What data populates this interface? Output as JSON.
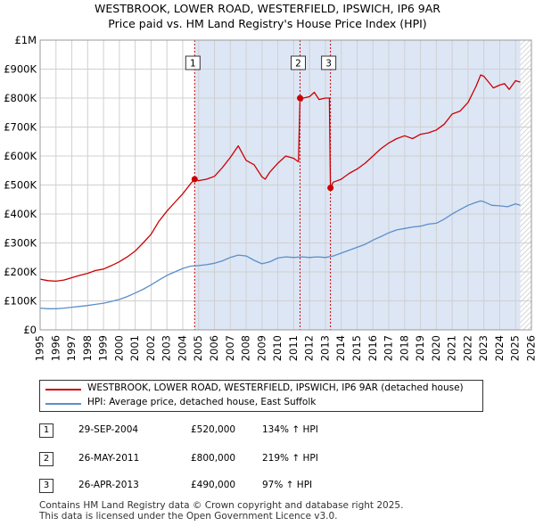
{
  "header": {
    "title_line1": "WESTBROOK, LOWER ROAD, WESTERFIELD, IPSWICH, IP6 9AR",
    "title_line2": "Price paid vs. HM Land Registry's House Price Index (HPI)"
  },
  "colors": {
    "price_line": "#cc0000",
    "hpi_line": "#5b8fc9",
    "shade": "#dde6f5",
    "grid": "#d0d0d0",
    "marker_line": "#cc0000"
  },
  "chart_data": {
    "type": "line",
    "title": "Price paid vs. HM Land Registry's House Price Index (HPI)",
    "xlabel": "",
    "ylabel": "",
    "xlim": [
      1995,
      2026
    ],
    "ylim": [
      0,
      1000000
    ],
    "y_ticks": [
      0,
      100000,
      200000,
      300000,
      400000,
      500000,
      600000,
      700000,
      800000,
      900000,
      1000000
    ],
    "y_tick_labels": [
      "£0",
      "£100K",
      "£200K",
      "£300K",
      "£400K",
      "£500K",
      "£600K",
      "£700K",
      "£800K",
      "£900K",
      "£1M"
    ],
    "x_ticks": [
      1995,
      1996,
      1997,
      1998,
      1999,
      2000,
      2001,
      2002,
      2003,
      2004,
      2005,
      2006,
      2007,
      2008,
      2009,
      2010,
      2011,
      2012,
      2013,
      2014,
      2015,
      2016,
      2017,
      2018,
      2019,
      2020,
      2021,
      2022,
      2023,
      2024,
      2025,
      2026
    ],
    "x_tick_labels": [
      "1995",
      "1996",
      "1997",
      "1998",
      "1999",
      "2000",
      "2001",
      "2002",
      "2003",
      "2004",
      "2005",
      "2006",
      "2007",
      "2008",
      "2009",
      "2010",
      "2011",
      "2012",
      "2013",
      "2014",
      "2015",
      "2016",
      "2017",
      "2018",
      "2019",
      "2020",
      "2021",
      "2022",
      "2023",
      "2024",
      "2025",
      "2026"
    ],
    "grid": true,
    "shaded_period": [
      2004.75,
      2025.3
    ],
    "hatched_after": 2025.3,
    "series": [
      {
        "name": "WESTBROOK, LOWER ROAD, WESTERFIELD, IPSWICH, IP6 9AR (detached house)",
        "x": [
          1995.0,
          1995.5,
          1996.0,
          1996.5,
          1997.0,
          1997.5,
          1998.0,
          1998.5,
          1999.0,
          1999.5,
          2000.0,
          2000.5,
          2001.0,
          2001.5,
          2002.0,
          2002.5,
          2003.0,
          2003.5,
          2004.0,
          2004.5,
          2004.75,
          2005.0,
          2005.5,
          2006.0,
          2006.5,
          2007.0,
          2007.5,
          2007.8,
          2008.0,
          2008.5,
          2009.0,
          2009.2,
          2009.5,
          2010.0,
          2010.5,
          2011.0,
          2011.3,
          2011.4,
          2011.5,
          2011.6,
          2012.0,
          2012.3,
          2012.6,
          2013.0,
          2013.25,
          2013.32,
          2013.5,
          2014.0,
          2014.5,
          2015.0,
          2015.5,
          2016.0,
          2016.5,
          2017.0,
          2017.5,
          2018.0,
          2018.5,
          2019.0,
          2019.5,
          2020.0,
          2020.5,
          2021.0,
          2021.5,
          2022.0,
          2022.5,
          2022.8,
          2023.0,
          2023.3,
          2023.6,
          2024.0,
          2024.3,
          2024.6,
          2025.0,
          2025.3
        ],
        "values": [
          175000,
          170000,
          168000,
          172000,
          180000,
          188000,
          195000,
          205000,
          210000,
          222000,
          235000,
          252000,
          272000,
          300000,
          330000,
          375000,
          410000,
          440000,
          470000,
          505000,
          520000,
          515000,
          520000,
          530000,
          560000,
          595000,
          635000,
          605000,
          585000,
          570000,
          528000,
          520000,
          545000,
          575000,
          600000,
          592000,
          580000,
          800000,
          790000,
          800000,
          805000,
          820000,
          795000,
          800000,
          800000,
          490000,
          510000,
          520000,
          540000,
          555000,
          575000,
          600000,
          625000,
          645000,
          660000,
          670000,
          660000,
          675000,
          680000,
          690000,
          710000,
          745000,
          755000,
          785000,
          840000,
          880000,
          875000,
          855000,
          835000,
          845000,
          850000,
          830000,
          860000,
          855000
        ],
        "color": "#cc0000"
      },
      {
        "name": "HPI: Average price, detached house, East Suffolk",
        "x": [
          1995.0,
          1995.5,
          1996.0,
          1996.5,
          1997.0,
          1997.5,
          1998.0,
          1998.5,
          1999.0,
          1999.5,
          2000.0,
          2000.5,
          2001.0,
          2001.5,
          2002.0,
          2002.5,
          2003.0,
          2003.5,
          2004.0,
          2004.5,
          2005.0,
          2005.5,
          2006.0,
          2006.5,
          2007.0,
          2007.5,
          2008.0,
          2008.5,
          2009.0,
          2009.5,
          2010.0,
          2010.5,
          2011.0,
          2011.5,
          2012.0,
          2012.5,
          2013.0,
          2013.5,
          2014.0,
          2014.5,
          2015.0,
          2015.5,
          2016.0,
          2016.5,
          2017.0,
          2017.5,
          2018.0,
          2018.5,
          2019.0,
          2019.5,
          2020.0,
          2020.5,
          2021.0,
          2021.5,
          2022.0,
          2022.5,
          2022.8,
          2023.0,
          2023.5,
          2024.0,
          2024.5,
          2025.0,
          2025.3
        ],
        "values": [
          75000,
          73000,
          73000,
          75000,
          78000,
          81000,
          84000,
          88000,
          92000,
          98000,
          105000,
          115000,
          127000,
          140000,
          155000,
          172000,
          188000,
          200000,
          212000,
          220000,
          222000,
          225000,
          230000,
          238000,
          250000,
          258000,
          255000,
          240000,
          228000,
          235000,
          248000,
          252000,
          250000,
          252000,
          250000,
          252000,
          250000,
          255000,
          265000,
          275000,
          285000,
          295000,
          310000,
          322000,
          335000,
          345000,
          350000,
          355000,
          358000,
          365000,
          368000,
          382000,
          400000,
          415000,
          430000,
          440000,
          445000,
          442000,
          430000,
          428000,
          425000,
          435000,
          430000
        ],
        "color": "#5b8fc9"
      }
    ],
    "sales": [
      {
        "num": "1",
        "x": 2004.75,
        "y": 520000
      },
      {
        "num": "2",
        "x": 2011.4,
        "y": 800000
      },
      {
        "num": "3",
        "x": 2013.32,
        "y": 490000
      }
    ]
  },
  "legend": {
    "items": [
      {
        "label": "WESTBROOK, LOWER ROAD, WESTERFIELD, IPSWICH, IP6 9AR (detached house)",
        "color": "#cc0000"
      },
      {
        "label": "HPI: Average price, detached house, East Suffolk",
        "color": "#5b8fc9"
      }
    ]
  },
  "transactions": [
    {
      "num": "1",
      "date": "29-SEP-2004",
      "price": "£520,000",
      "hpi": "134% ↑ HPI"
    },
    {
      "num": "2",
      "date": "26-MAY-2011",
      "price": "£800,000",
      "hpi": "219% ↑ HPI"
    },
    {
      "num": "3",
      "date": "26-APR-2013",
      "price": "£490,000",
      "hpi": "97% ↑ HPI"
    }
  ],
  "footer": {
    "line1": "Contains HM Land Registry data © Crown copyright and database right 2025.",
    "line2": "This data is licensed under the Open Government Licence v3.0."
  }
}
